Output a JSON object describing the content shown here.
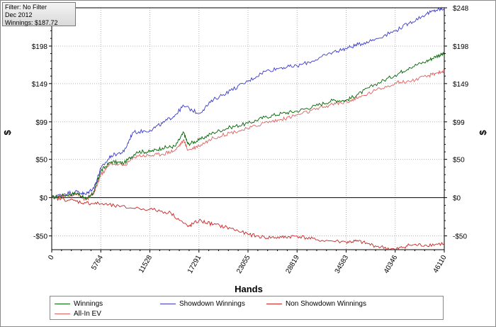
{
  "info": {
    "filter": "Filter: No Filter",
    "period": "Dec 2012",
    "winnings": "Winnings: $187.72"
  },
  "chart_data": {
    "type": "line",
    "xlabel": "Hands",
    "ylabel": "$",
    "xlim": [
      0,
      46110
    ],
    "ylim": [
      -68,
      248
    ],
    "x_ticks": [
      0,
      5764,
      11528,
      17291,
      23055,
      28819,
      34583,
      40346,
      46110
    ],
    "y_ticks": [
      -50,
      0,
      50,
      99,
      149,
      198,
      248
    ],
    "y_tick_labels": [
      "-$50",
      "$0",
      "$50",
      "$99",
      "$149",
      "$198",
      "$248"
    ],
    "zero_line": true,
    "grid": true,
    "legend_position": "bottom",
    "series": [
      {
        "name": "Winnings",
        "color": "#006400",
        "x": [
          0,
          1500,
          3000,
          4000,
          5000,
          5764,
          7000,
          8500,
          10000,
          11528,
          13000,
          14500,
          15500,
          16000,
          17291,
          19000,
          21000,
          23055,
          25000,
          27000,
          28819,
          31000,
          33000,
          34583,
          36000,
          38000,
          40346,
          42000,
          44000,
          45200,
          46110
        ],
        "y": [
          0,
          3,
          6,
          -2,
          8,
          35,
          47,
          45,
          60,
          60,
          65,
          67,
          85,
          70,
          75,
          85,
          92,
          97,
          105,
          110,
          113,
          120,
          127,
          127,
          135,
          148,
          160,
          170,
          178,
          185,
          188
        ]
      },
      {
        "name": "Showdown Winnings",
        "color": "#3a3acc",
        "x": [
          0,
          1500,
          3000,
          4000,
          5000,
          5764,
          7000,
          8500,
          9500,
          11528,
          13000,
          14500,
          15500,
          17291,
          19000,
          21000,
          23055,
          25000,
          27000,
          28819,
          31000,
          33000,
          34583,
          36000,
          38000,
          40346,
          42000,
          44000,
          45200,
          46110
        ],
        "y": [
          0,
          5,
          8,
          4,
          14,
          38,
          55,
          60,
          85,
          88,
          97,
          108,
          120,
          110,
          128,
          140,
          152,
          165,
          170,
          172,
          180,
          190,
          195,
          200,
          207,
          218,
          228,
          240,
          245,
          247
        ]
      },
      {
        "name": "Non Showdown Winnings",
        "color": "#cc2222",
        "x": [
          0,
          2000,
          4000,
          5764,
          8000,
          11528,
          14000,
          16000,
          17291,
          19000,
          21000,
          23055,
          25000,
          27000,
          28819,
          31000,
          34583,
          36000,
          38000,
          40346,
          42000,
          44000,
          46110
        ],
        "y": [
          0,
          -3,
          -7,
          -8,
          -12,
          -15,
          -20,
          -38,
          -30,
          -35,
          -40,
          -48,
          -52,
          -52,
          -50,
          -55,
          -58,
          -57,
          -63,
          -68,
          -62,
          -62,
          -60
        ]
      },
      {
        "name": "All-In EV",
        "color": "#e06060",
        "x": [
          0,
          1500,
          3000,
          4000,
          5000,
          5764,
          7000,
          8500,
          10000,
          11528,
          13000,
          14500,
          15500,
          16000,
          17291,
          19000,
          21000,
          23055,
          25000,
          27000,
          28819,
          31000,
          33000,
          34583,
          36000,
          38000,
          40346,
          42000,
          44000,
          45200,
          46110
        ],
        "y": [
          0,
          2,
          5,
          -3,
          6,
          30,
          45,
          42,
          55,
          55,
          57,
          62,
          75,
          62,
          68,
          78,
          85,
          90,
          98,
          102,
          108,
          115,
          122,
          125,
          130,
          140,
          150,
          152,
          158,
          163,
          165
        ]
      }
    ]
  }
}
